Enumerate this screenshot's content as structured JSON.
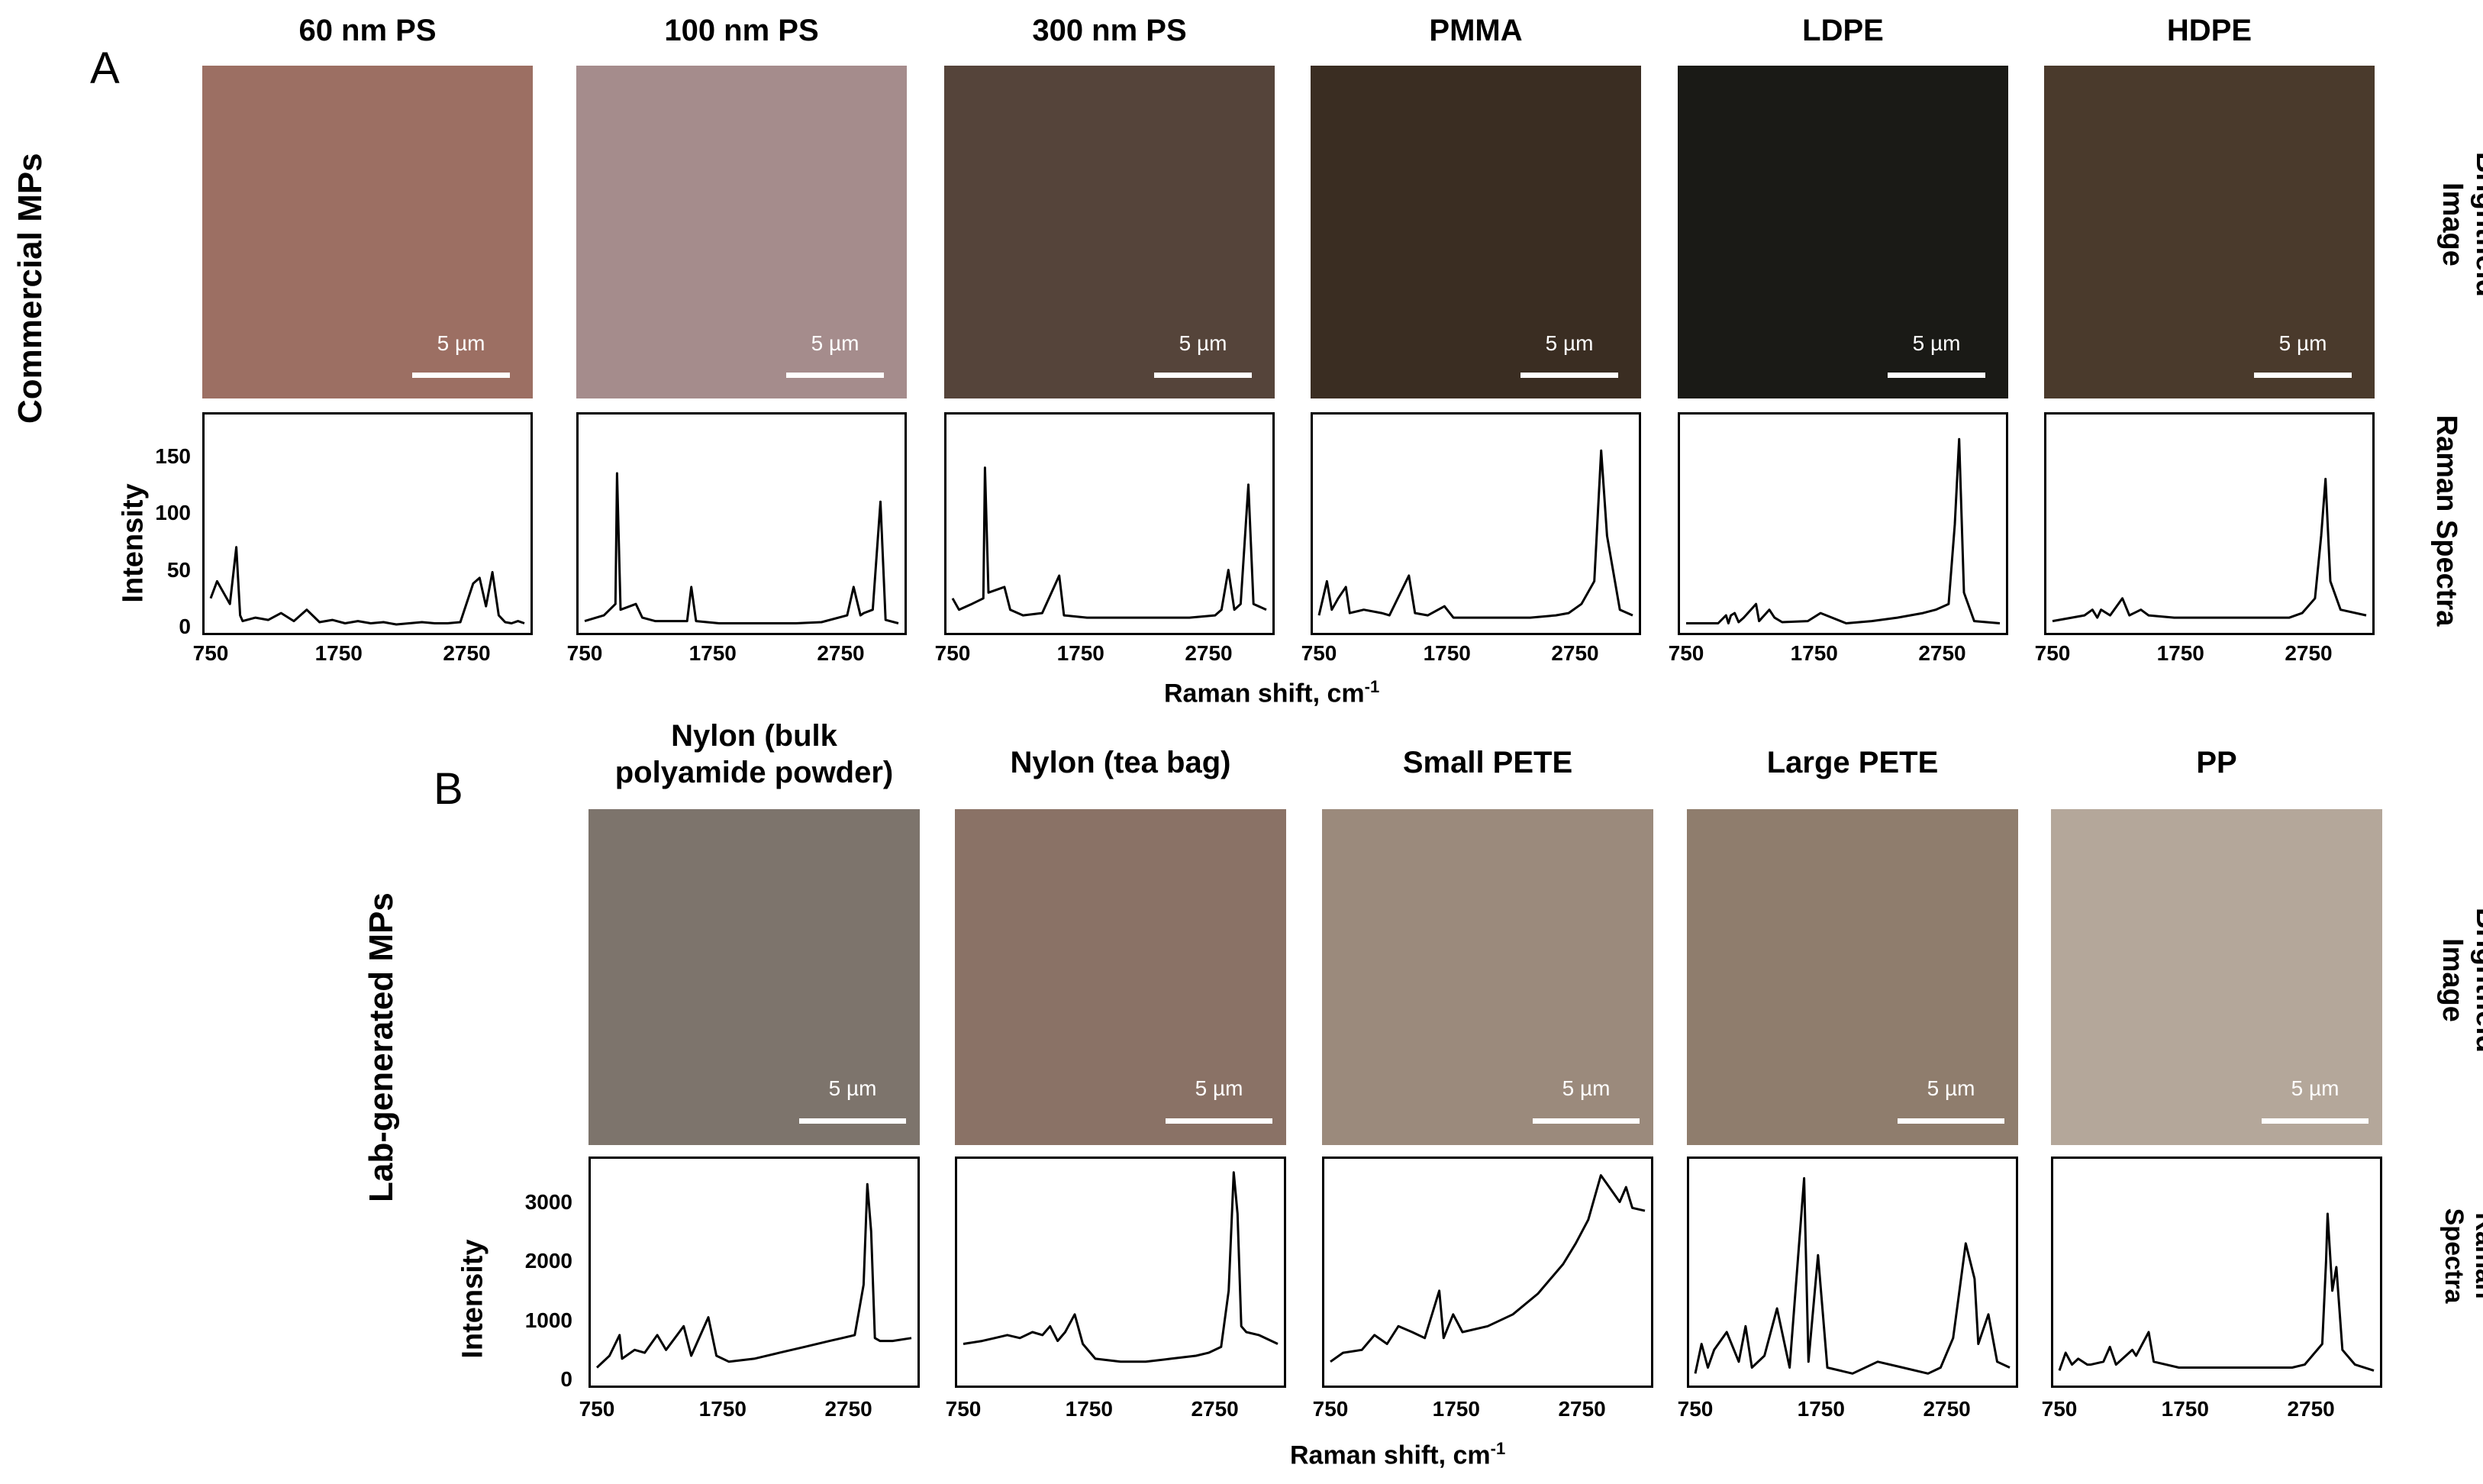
{
  "panel_a": {
    "letter": "A",
    "row_label": "Commercial MPs",
    "right_label_image": [
      "Brightfield",
      "Image"
    ],
    "right_label_spectra": "Raman Spectra",
    "ylabel": "Intensity",
    "yticks": [
      "150",
      "100",
      "50",
      "0"
    ],
    "xlabel": "Raman shift, cm",
    "xlabel_sup": "-1",
    "scale_label": "5 µm",
    "columns": [
      {
        "title": "60 nm PS",
        "color": "#9c6f63"
      },
      {
        "title": "100 nm PS",
        "color": "#a58c8c"
      },
      {
        "title": "300 nm PS",
        "color": "#55443a"
      },
      {
        "title": "PMMA",
        "color": "#3a2d22"
      },
      {
        "title": "LDPE",
        "color": "#1a1a16"
      },
      {
        "title": "HDPE",
        "color": "#4a3a2c"
      }
    ],
    "xticks": [
      "750",
      "1750",
      "2750"
    ]
  },
  "panel_b": {
    "letter": "B",
    "row_label": "Lab-generated MPs",
    "right_label_image": [
      "Brightfield",
      "Image"
    ],
    "right_label_spectra": [
      "Raman",
      "Spectra"
    ],
    "ylabel": "Intensity",
    "yticks": [
      "3000",
      "2000",
      "1000",
      "0"
    ],
    "xlabel": "Raman shift, cm",
    "xlabel_sup": "-1",
    "scale_label": "5 µm",
    "columns": [
      {
        "title_lines": [
          "Nylon (bulk",
          "polyamide powder)"
        ],
        "color": "#7d746c"
      },
      {
        "title_lines": [
          "Nylon (tea bag)"
        ],
        "color": "#8a7266"
      },
      {
        "title_lines": [
          "Small PETE"
        ],
        "color": "#9b8a7c"
      },
      {
        "title_lines": [
          "Large PETE"
        ],
        "color": "#8f7d6d"
      },
      {
        "title_lines": [
          "PP"
        ],
        "color": "#b4a79a"
      }
    ],
    "xticks": [
      "750",
      "1750",
      "2750"
    ]
  },
  "chart_data": [
    {
      "type": "line",
      "title": "60 nm PS",
      "xlabel": "Raman shift, cm-1",
      "ylabel": "Intensity",
      "xlim": [
        750,
        3200
      ],
      "ylim": [
        0,
        180
      ],
      "x": [
        750,
        800,
        900,
        950,
        980,
        1000,
        1100,
        1200,
        1300,
        1400,
        1500,
        1600,
        1700,
        1800,
        1900,
        2000,
        2100,
        2200,
        2300,
        2400,
        2500,
        2600,
        2700,
        2800,
        2850,
        2900,
        2950,
        3000,
        3050,
        3100,
        3150,
        3200
      ],
      "y": [
        25,
        40,
        20,
        70,
        10,
        5,
        8,
        6,
        12,
        5,
        15,
        4,
        6,
        3,
        5,
        3,
        4,
        2,
        3,
        4,
        3,
        3,
        4,
        38,
        43,
        18,
        48,
        10,
        4,
        3,
        5,
        3
      ]
    },
    {
      "type": "line",
      "title": "100 nm PS",
      "xlabel": "Raman shift, cm-1",
      "ylabel": "Intensity",
      "xlim": [
        750,
        3200
      ],
      "ylim": [
        0,
        180
      ],
      "x": [
        750,
        900,
        990,
        1003,
        1030,
        1150,
        1200,
        1300,
        1450,
        1550,
        1583,
        1620,
        1800,
        2000,
        2200,
        2400,
        2600,
        2800,
        2850,
        2904,
        2930,
        3000,
        3060,
        3100,
        3200
      ],
      "y": [
        5,
        10,
        20,
        135,
        15,
        20,
        8,
        5,
        5,
        5,
        35,
        5,
        3,
        3,
        3,
        3,
        4,
        10,
        35,
        10,
        12,
        15,
        110,
        6,
        3
      ]
    },
    {
      "type": "line",
      "title": "300 nm PS",
      "xlabel": "Raman shift, cm-1",
      "ylabel": "Intensity",
      "xlim": [
        750,
        3200
      ],
      "ylim": [
        0,
        180
      ],
      "x": [
        750,
        800,
        900,
        990,
        1003,
        1030,
        1155,
        1200,
        1300,
        1450,
        1583,
        1620,
        1800,
        2000,
        2200,
        2400,
        2600,
        2800,
        2850,
        2904,
        2950,
        3000,
        3060,
        3100,
        3200
      ],
      "y": [
        25,
        15,
        20,
        25,
        140,
        30,
        35,
        15,
        10,
        12,
        45,
        10,
        8,
        8,
        8,
        8,
        8,
        10,
        15,
        50,
        15,
        20,
        125,
        20,
        15
      ]
    },
    {
      "type": "line",
      "title": "PMMA",
      "xlabel": "Raman shift, cm-1",
      "ylabel": "Intensity",
      "xlim": [
        750,
        3200
      ],
      "ylim": [
        0,
        180
      ],
      "x": [
        750,
        812,
        850,
        900,
        960,
        990,
        1100,
        1240,
        1300,
        1452,
        1500,
        1600,
        1730,
        1800,
        2000,
        2200,
        2400,
        2600,
        2700,
        2800,
        2850,
        2900,
        2954,
        3000,
        3100,
        3200
      ],
      "y": [
        10,
        40,
        15,
        25,
        35,
        12,
        15,
        12,
        10,
        45,
        12,
        10,
        18,
        8,
        8,
        8,
        8,
        10,
        12,
        20,
        30,
        40,
        155,
        80,
        15,
        10
      ]
    },
    {
      "type": "line",
      "title": "LDPE",
      "xlabel": "Raman shift, cm-1",
      "ylabel": "Intensity",
      "xlim": [
        750,
        3200
      ],
      "ylim": [
        0,
        180
      ],
      "x": [
        750,
        1000,
        1062,
        1080,
        1100,
        1129,
        1160,
        1200,
        1296,
        1320,
        1400,
        1440,
        1500,
        1700,
        1800,
        2000,
        2200,
        2400,
        2600,
        2700,
        2800,
        2848,
        2882,
        2920,
        3000,
        3200
      ],
      "y": [
        3,
        3,
        10,
        3,
        10,
        12,
        4,
        8,
        20,
        5,
        15,
        8,
        4,
        5,
        12,
        3,
        5,
        8,
        12,
        15,
        20,
        90,
        165,
        30,
        5,
        3
      ]
    },
    {
      "type": "line",
      "title": "HDPE",
      "xlabel": "Raman shift, cm-1",
      "ylabel": "Intensity",
      "xlim": [
        750,
        3200
      ],
      "ylim": [
        0,
        180
      ],
      "x": [
        750,
        900,
        1000,
        1062,
        1100,
        1129,
        1200,
        1296,
        1350,
        1440,
        1500,
        1700,
        2000,
        2200,
        2400,
        2600,
        2700,
        2800,
        2848,
        2882,
        2920,
        3000,
        3200
      ],
      "y": [
        5,
        8,
        10,
        15,
        8,
        15,
        10,
        25,
        10,
        15,
        10,
        8,
        8,
        8,
        8,
        8,
        12,
        25,
        80,
        130,
        40,
        15,
        10
      ]
    },
    {
      "type": "line",
      "title": "Nylon (bulk polyamide powder)",
      "xlabel": "Raman shift, cm-1",
      "ylabel": "Intensity",
      "xlim": [
        750,
        3250
      ],
      "ylim": [
        0,
        3600
      ],
      "x": [
        750,
        850,
        930,
        950,
        1050,
        1130,
        1230,
        1300,
        1440,
        1500,
        1636,
        1700,
        1800,
        2000,
        2200,
        2400,
        2600,
        2700,
        2800,
        2870,
        2900,
        2930,
        2960,
        3000,
        3100,
        3250
      ],
      "y": [
        200,
        400,
        750,
        350,
        500,
        450,
        750,
        500,
        900,
        400,
        1050,
        400,
        300,
        350,
        450,
        550,
        650,
        700,
        750,
        1600,
        3300,
        2500,
        700,
        650,
        650,
        700
      ]
    },
    {
      "type": "line",
      "title": "Nylon (tea bag)",
      "xlabel": "Raman shift, cm-1",
      "ylabel": "Intensity",
      "xlim": [
        750,
        3250
      ],
      "ylim": [
        0,
        3600
      ],
      "x": [
        750,
        900,
        1000,
        1100,
        1200,
        1300,
        1380,
        1440,
        1500,
        1560,
        1636,
        1700,
        1800,
        2000,
        2200,
        2400,
        2600,
        2700,
        2800,
        2860,
        2900,
        2930,
        2960,
        3000,
        3100,
        3250
      ],
      "y": [
        600,
        650,
        700,
        750,
        700,
        800,
        750,
        900,
        650,
        800,
        1100,
        600,
        350,
        300,
        300,
        350,
        400,
        450,
        550,
        1500,
        3500,
        2800,
        900,
        800,
        750,
        600
      ]
    },
    {
      "type": "line",
      "title": "Small PETE",
      "xlabel": "Raman shift, cm-1",
      "ylabel": "Intensity",
      "xlim": [
        750,
        3250
      ],
      "ylim": [
        0,
        3600
      ],
      "x": [
        750,
        850,
        1000,
        1100,
        1200,
        1290,
        1400,
        1500,
        1615,
        1650,
        1726,
        1800,
        2000,
        2200,
        2400,
        2600,
        2700,
        2800,
        2900,
        2950,
        3000,
        3050,
        3100,
        3150,
        3250
      ],
      "y": [
        300,
        450,
        500,
        750,
        600,
        900,
        800,
        700,
        1500,
        700,
        1100,
        800,
        900,
        1100,
        1450,
        1950,
        2300,
        2700,
        3450,
        3300,
        3150,
        3000,
        3250,
        2900,
        2850
      ]
    },
    {
      "type": "line",
      "title": "Large PETE",
      "xlabel": "Raman shift, cm-1",
      "ylabel": "Intensity",
      "xlim": [
        750,
        3250
      ],
      "ylim": [
        0,
        3600
      ],
      "x": [
        750,
        800,
        850,
        900,
        1000,
        1096,
        1150,
        1200,
        1300,
        1400,
        1500,
        1615,
        1650,
        1726,
        1800,
        2000,
        2200,
        2400,
        2600,
        2700,
        2800,
        2850,
        2900,
        2970,
        3000,
        3080,
        3150,
        3250
      ],
      "y": [
        100,
        600,
        200,
        500,
        800,
        300,
        900,
        200,
        400,
        1200,
        200,
        3400,
        300,
        2100,
        200,
        100,
        300,
        200,
        100,
        200,
        700,
        1500,
        2300,
        1700,
        600,
        1100,
        300,
        200
      ]
    },
    {
      "type": "line",
      "title": "PP",
      "xlabel": "Raman shift, cm-1",
      "ylabel": "Intensity",
      "xlim": [
        750,
        3250
      ],
      "ylim": [
        0,
        3600
      ],
      "x": [
        750,
        800,
        850,
        900,
        972,
        1000,
        1100,
        1152,
        1200,
        1330,
        1360,
        1460,
        1500,
        1700,
        2000,
        2200,
        2400,
        2600,
        2700,
        2840,
        2870,
        2882,
        2920,
        2952,
        3000,
        3100,
        3250
      ],
      "y": [
        150,
        450,
        250,
        350,
        250,
        250,
        300,
        550,
        250,
        500,
        400,
        800,
        300,
        200,
        200,
        200,
        200,
        200,
        250,
        600,
        2000,
        2800,
        1500,
        1900,
        500,
        250,
        150
      ]
    }
  ]
}
